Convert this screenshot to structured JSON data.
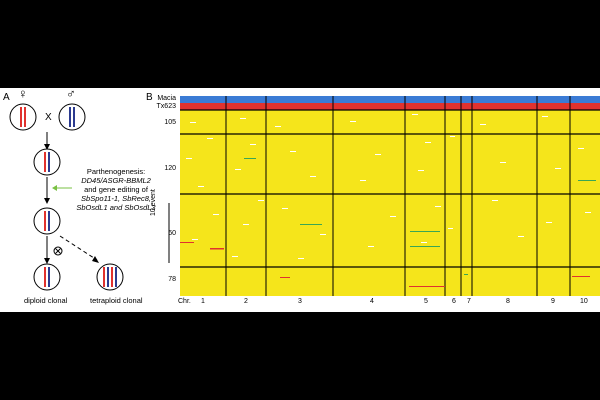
{
  "panel_a": {
    "label": "A",
    "female_symbol": "♀",
    "male_symbol": "♂",
    "cross_symbol": "X",
    "blocked_symbol": "⊗",
    "treatment_lines": [
      "Parthenogenesis:",
      "DD45/ASGR-BBML2",
      "and gene editing of",
      "SbSpo11-1, SbRec8,",
      "SbOsdL1 and SbOsdL3"
    ],
    "outcome_left": "diploid clonal",
    "outcome_right": "tetraploid clonal",
    "colors": {
      "maternal": "#e0322e",
      "paternal": "#2b3a8f",
      "arrow_green": "#7ac143"
    }
  },
  "panel_b": {
    "label": "B",
    "parent_labels": [
      "Macia",
      "Tx623"
    ],
    "event_labels": [
      "105",
      "120",
      "60",
      "78"
    ],
    "y_axis_label": "10 event",
    "chr_prefix": "Chr.",
    "chromosomes": [
      "1",
      "2",
      "3",
      "4",
      "5",
      "6",
      "7",
      "8",
      "9",
      "10"
    ],
    "colors": {
      "background": "#f5e51b",
      "macia": "#3a7bd5",
      "tx623": "#e0322e",
      "marks": "#ffffff",
      "green_marks": "#3aa655",
      "red_marks": "#e0322e",
      "dividers": "#000000"
    }
  }
}
